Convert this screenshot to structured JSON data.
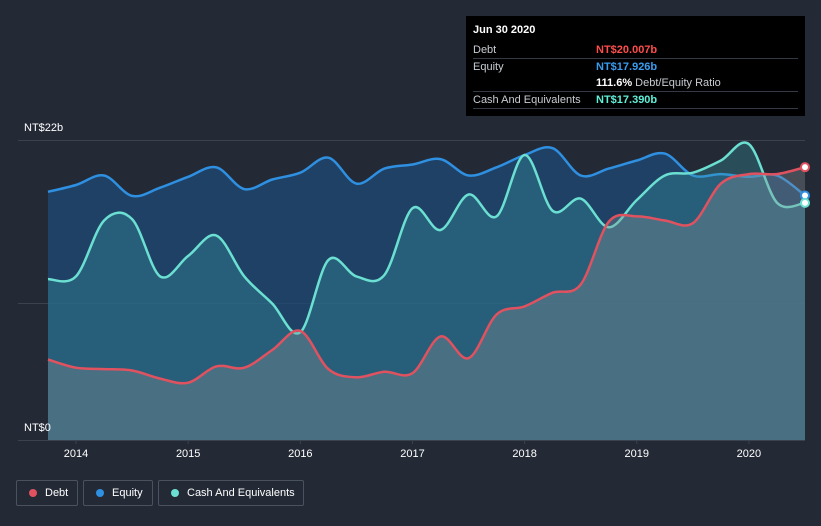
{
  "tooltip": {
    "date": "Jun 30 2020",
    "debt_label": "Debt",
    "debt_value": "NT$20.007b",
    "equity_label": "Equity",
    "equity_value": "NT$17.926b",
    "ratio_value": "111.6%",
    "ratio_label": "Debt/Equity Ratio",
    "cash_label": "Cash And Equivalents",
    "cash_value": "NT$17.390b"
  },
  "legend": {
    "debt": "Debt",
    "equity": "Equity",
    "cash": "Cash And Equivalents"
  },
  "colors": {
    "debt": "#e0525f",
    "equity": "#2f8fe0",
    "cash": "#6be0d2",
    "background": "#232a36",
    "tooltip_debt": "#ff4d4d",
    "tooltip_equity": "#3a9cf0",
    "tooltip_cash": "#5ff0d8"
  },
  "chart_data": {
    "type": "area",
    "ylabel_top": "NT$22b",
    "ylabel_bottom": "NT$0",
    "ylim": [
      0,
      22
    ],
    "xlim": [
      2013.75,
      2020.5
    ],
    "x_ticks": [
      2014,
      2015,
      2016,
      2017,
      2018,
      2019,
      2020
    ],
    "series": [
      {
        "name": "Equity",
        "points": [
          [
            2013.75,
            18.2
          ],
          [
            2014,
            18.7
          ],
          [
            2014.25,
            19.4
          ],
          [
            2014.5,
            17.9
          ],
          [
            2014.75,
            18.5
          ],
          [
            2015,
            19.3
          ],
          [
            2015.25,
            20.0
          ],
          [
            2015.5,
            18.4
          ],
          [
            2015.75,
            19.1
          ],
          [
            2016,
            19.6
          ],
          [
            2016.25,
            20.7
          ],
          [
            2016.5,
            18.8
          ],
          [
            2016.75,
            19.9
          ],
          [
            2017,
            20.2
          ],
          [
            2017.25,
            20.6
          ],
          [
            2017.5,
            19.4
          ],
          [
            2017.75,
            20.0
          ],
          [
            2018,
            20.9
          ],
          [
            2018.25,
            21.4
          ],
          [
            2018.5,
            19.4
          ],
          [
            2018.75,
            19.9
          ],
          [
            2019,
            20.5
          ],
          [
            2019.25,
            21.0
          ],
          [
            2019.5,
            19.4
          ],
          [
            2019.75,
            19.5
          ],
          [
            2020,
            19.3
          ],
          [
            2020.25,
            19.4
          ],
          [
            2020.5,
            17.926
          ]
        ]
      },
      {
        "name": "Cash And Equivalents",
        "points": [
          [
            2013.75,
            11.8
          ],
          [
            2014,
            12.0
          ],
          [
            2014.25,
            16.1
          ],
          [
            2014.5,
            16.2
          ],
          [
            2014.75,
            12.0
          ],
          [
            2015,
            13.5
          ],
          [
            2015.25,
            15.0
          ],
          [
            2015.5,
            12.0
          ],
          [
            2015.75,
            10.0
          ],
          [
            2016,
            7.9
          ],
          [
            2016.25,
            13.2
          ],
          [
            2016.5,
            12.0
          ],
          [
            2016.75,
            12.1
          ],
          [
            2017,
            17.0
          ],
          [
            2017.25,
            15.4
          ],
          [
            2017.5,
            18.0
          ],
          [
            2017.75,
            16.4
          ],
          [
            2018,
            20.9
          ],
          [
            2018.25,
            16.8
          ],
          [
            2018.5,
            17.7
          ],
          [
            2018.75,
            15.6
          ],
          [
            2019,
            17.6
          ],
          [
            2019.25,
            19.4
          ],
          [
            2019.5,
            19.6
          ],
          [
            2019.75,
            20.5
          ],
          [
            2020,
            21.7
          ],
          [
            2020.25,
            17.4
          ],
          [
            2020.5,
            17.39
          ]
        ]
      },
      {
        "name": "Debt",
        "points": [
          [
            2013.75,
            5.9
          ],
          [
            2014,
            5.3
          ],
          [
            2014.25,
            5.2
          ],
          [
            2014.5,
            5.1
          ],
          [
            2014.75,
            4.5
          ],
          [
            2015,
            4.2
          ],
          [
            2015.25,
            5.4
          ],
          [
            2015.5,
            5.3
          ],
          [
            2015.75,
            6.6
          ],
          [
            2016,
            8.0
          ],
          [
            2016.25,
            5.2
          ],
          [
            2016.5,
            4.6
          ],
          [
            2016.75,
            5.0
          ],
          [
            2017,
            4.9
          ],
          [
            2017.25,
            7.6
          ],
          [
            2017.5,
            6.0
          ],
          [
            2017.75,
            9.2
          ],
          [
            2018,
            9.8
          ],
          [
            2018.25,
            10.8
          ],
          [
            2018.5,
            11.4
          ],
          [
            2018.75,
            16.0
          ],
          [
            2019,
            16.4
          ],
          [
            2019.25,
            16.1
          ],
          [
            2019.5,
            15.9
          ],
          [
            2019.75,
            18.8
          ],
          [
            2020,
            19.5
          ],
          [
            2020.25,
            19.5
          ],
          [
            2020.5,
            20.007
          ]
        ]
      }
    ]
  }
}
